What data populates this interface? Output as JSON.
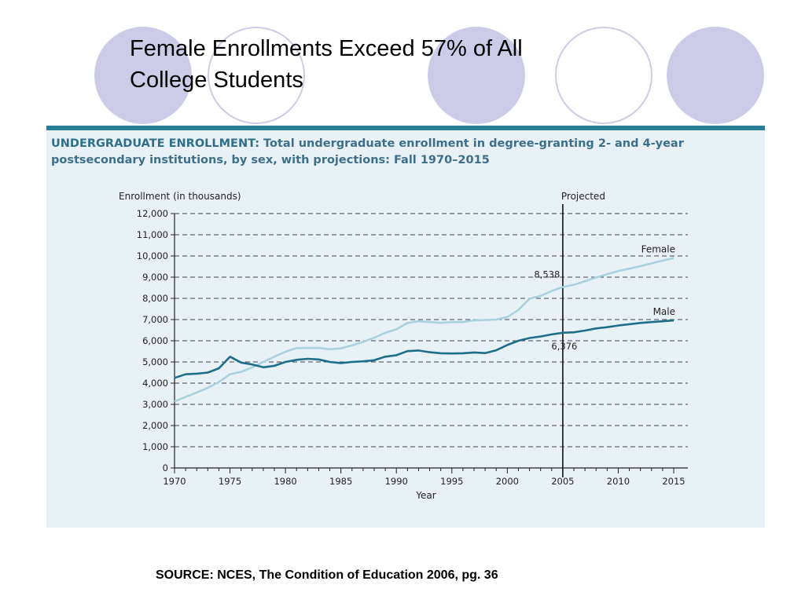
{
  "slide": {
    "title_line1": "Female Enrollments Exceed 57% of All",
    "title_line2": "College Students",
    "source": "SOURCE: NCES, The Condition of Education 2006, pg. 36",
    "decor_colors": {
      "filled": "#cccce8",
      "outline": "#cccce8"
    }
  },
  "panel": {
    "heading_lead": "UNDERGRADUATE ENROLLMENT:",
    "heading_rest": " Total undergraduate enrollment in degree-granting 2- and 4-year postsecondary institutions, by sex, with projections: Fall 1970–2015",
    "background": "#e8f1f6",
    "accent": "#2a7f97"
  },
  "chart_data": {
    "type": "line",
    "ylabel": "Enrollment (in thousands)",
    "xlabel": "Year",
    "ylim": [
      0,
      12000
    ],
    "xlim": [
      1970,
      2015
    ],
    "yticks": [
      0,
      1000,
      2000,
      3000,
      4000,
      5000,
      6000,
      7000,
      8000,
      9000,
      10000,
      11000,
      12000
    ],
    "ytick_labels": [
      "0",
      "1,000",
      "2,000",
      "3,000",
      "4,000",
      "5,000",
      "6,000",
      "7,000",
      "8,000",
      "9,000",
      "10,000",
      "11,000",
      "12,000"
    ],
    "xticks": [
      1970,
      1975,
      1980,
      1985,
      1990,
      1995,
      2000,
      2005,
      2010,
      2015
    ],
    "xtick_labels": [
      "1970",
      "1975",
      "1980",
      "1985",
      "1990",
      "1995",
      "2000",
      "2005",
      "2010",
      "2015"
    ],
    "grid": "horizontal dashed",
    "projection_line": {
      "x": 2005,
      "label": "Projected"
    },
    "annotations": [
      {
        "text": "8,538",
        "x": 2005,
        "y": 8538,
        "position": "above-left"
      },
      {
        "text": "6,376",
        "x": 2005,
        "y": 6376,
        "position": "below"
      }
    ],
    "series": [
      {
        "name": "Female",
        "color": "#a9d2df",
        "x": [
          1970,
          1971,
          1972,
          1973,
          1974,
          1975,
          1976,
          1977,
          1978,
          1979,
          1980,
          1981,
          1982,
          1983,
          1984,
          1985,
          1986,
          1987,
          1988,
          1989,
          1990,
          1991,
          1992,
          1993,
          1994,
          1995,
          1996,
          1997,
          1998,
          1999,
          2000,
          2001,
          2002,
          2003,
          2004,
          2005,
          2006,
          2007,
          2008,
          2009,
          2010,
          2011,
          2012,
          2013,
          2014,
          2015
        ],
        "values": [
          3140,
          3350,
          3560,
          3780,
          4050,
          4420,
          4530,
          4740,
          5000,
          5250,
          5480,
          5650,
          5660,
          5660,
          5600,
          5640,
          5780,
          5950,
          6140,
          6380,
          6540,
          6840,
          6920,
          6880,
          6850,
          6880,
          6880,
          6960,
          6980,
          7000,
          7120,
          7450,
          7980,
          8120,
          8350,
          8538,
          8640,
          8810,
          8980,
          9140,
          9290,
          9400,
          9520,
          9650,
          9780,
          9900
        ]
      },
      {
        "name": "Male",
        "color": "#1e6e8a",
        "x": [
          1970,
          1971,
          1972,
          1973,
          1974,
          1975,
          1976,
          1977,
          1978,
          1979,
          1980,
          1981,
          1982,
          1983,
          1984,
          1985,
          1986,
          1987,
          1988,
          1989,
          1990,
          1991,
          1992,
          1993,
          1994,
          1995,
          1996,
          1997,
          1998,
          1999,
          2000,
          2001,
          2002,
          2003,
          2004,
          2005,
          2006,
          2007,
          2008,
          2009,
          2010,
          2011,
          2012,
          2013,
          2014,
          2015
        ],
        "values": [
          4250,
          4420,
          4450,
          4500,
          4700,
          5250,
          4970,
          4880,
          4750,
          4820,
          5000,
          5100,
          5150,
          5120,
          5000,
          4950,
          5000,
          5030,
          5080,
          5250,
          5320,
          5510,
          5540,
          5460,
          5410,
          5400,
          5410,
          5450,
          5420,
          5550,
          5800,
          6000,
          6130,
          6200,
          6300,
          6376,
          6400,
          6480,
          6580,
          6640,
          6720,
          6780,
          6840,
          6880,
          6920,
          6960
        ]
      }
    ]
  }
}
